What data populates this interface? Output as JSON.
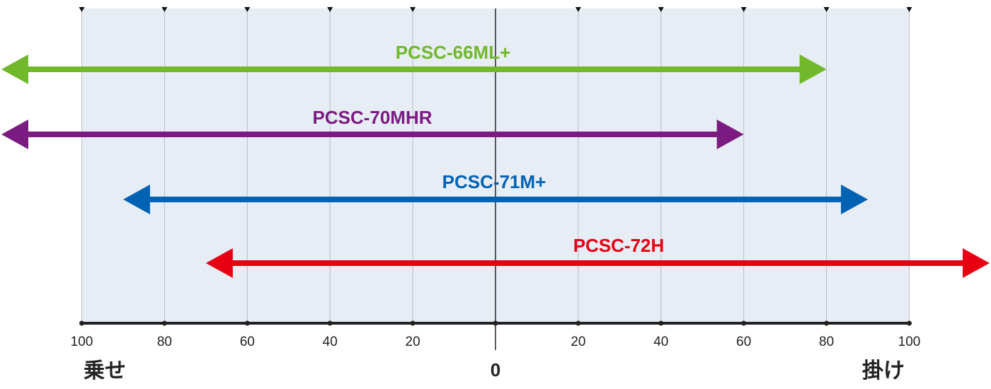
{
  "chart_data": {
    "type": "range",
    "x_ticks": [
      -100,
      -80,
      -60,
      -40,
      -20,
      0,
      20,
      40,
      60,
      80,
      100
    ],
    "tick_labels": [
      "100",
      "80",
      "60",
      "40",
      "20",
      "0",
      "20",
      "40",
      "60",
      "80",
      "100"
    ],
    "left_end_label": "乗せ",
    "right_end_label": "掛け",
    "center_label": "0",
    "xlim": [
      -100,
      100
    ],
    "grid": true,
    "colors": {
      "background_band": "#e6edf4",
      "grid_line": "#b8bec6",
      "center_line": "#333333",
      "axis_line": "#222222"
    },
    "series": [
      {
        "name": "PCSC-66ML+",
        "start": -120,
        "end": 80,
        "color": "#71b82b"
      },
      {
        "name": "PCSC-70MHR",
        "start": -120,
        "end": 60,
        "color": "#7b1b82"
      },
      {
        "name": "PCSC-71M+",
        "start": -90,
        "end": 90,
        "color": "#0062b3"
      },
      {
        "name": "PCSC-72H",
        "start": -70,
        "end": 120,
        "color": "#e60012"
      }
    ]
  }
}
